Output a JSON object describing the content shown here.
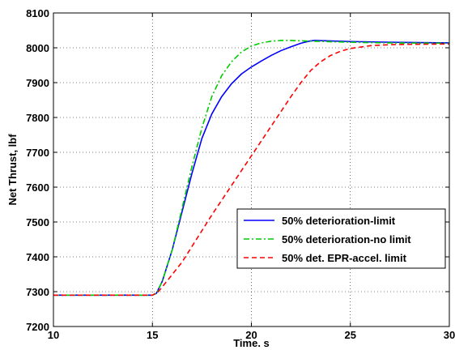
{
  "chart_data": {
    "type": "line",
    "title": "",
    "xlabel": "Time. s",
    "ylabel": "Net Thrust, lbf",
    "xlim": [
      10,
      30
    ],
    "ylim": [
      7200,
      8100
    ],
    "xticks": [
      10,
      15,
      20,
      25,
      30
    ],
    "yticks": [
      7200,
      7300,
      7400,
      7500,
      7600,
      7700,
      7800,
      7900,
      8000,
      8100
    ],
    "grid": true,
    "legend_position": "lower-right",
    "series": [
      {
        "name": "50% deterioration-limit",
        "color": "#0000ff",
        "line_style": "solid",
        "x": [
          10,
          15,
          15.2,
          15.5,
          16,
          16.5,
          17,
          17.5,
          18,
          18.5,
          19,
          19.5,
          20,
          20.5,
          21,
          21.5,
          22,
          22.5,
          23,
          23.2,
          25,
          27,
          30
        ],
        "y": [
          7290,
          7290,
          7295,
          7330,
          7420,
          7530,
          7640,
          7740,
          7810,
          7860,
          7897,
          7925,
          7945,
          7962,
          7978,
          7992,
          8003,
          8013,
          8020,
          8021,
          8018,
          8016,
          8014
        ]
      },
      {
        "name": "50% deterioration-no limit",
        "color": "#00cc00",
        "line_style": "dash-dot",
        "x": [
          10,
          15,
          15.2,
          15.5,
          16,
          16.5,
          17,
          17.5,
          18,
          18.5,
          19,
          19.5,
          20,
          20.5,
          21,
          21.5,
          22,
          22.5,
          23,
          25,
          27,
          30
        ],
        "y": [
          7290,
          7290,
          7295,
          7330,
          7420,
          7540,
          7660,
          7770,
          7860,
          7920,
          7960,
          7988,
          8005,
          8014,
          8019,
          8021,
          8021,
          8020,
          8019,
          8016,
          8014,
          8013
        ]
      },
      {
        "name": "50% det. EPR-accel. limit",
        "color": "#ff0000",
        "line_style": "dashed",
        "x": [
          10,
          15,
          15.3,
          15.8,
          16.5,
          17,
          18,
          19,
          20,
          21,
          22,
          22.5,
          23,
          23.5,
          24,
          24.5,
          25,
          26,
          27,
          28,
          30
        ],
        "y": [
          7290,
          7290,
          7300,
          7335,
          7385,
          7430,
          7520,
          7605,
          7690,
          7775,
          7860,
          7900,
          7935,
          7960,
          7978,
          7990,
          7998,
          8006,
          8009,
          8010,
          8011
        ]
      }
    ]
  }
}
